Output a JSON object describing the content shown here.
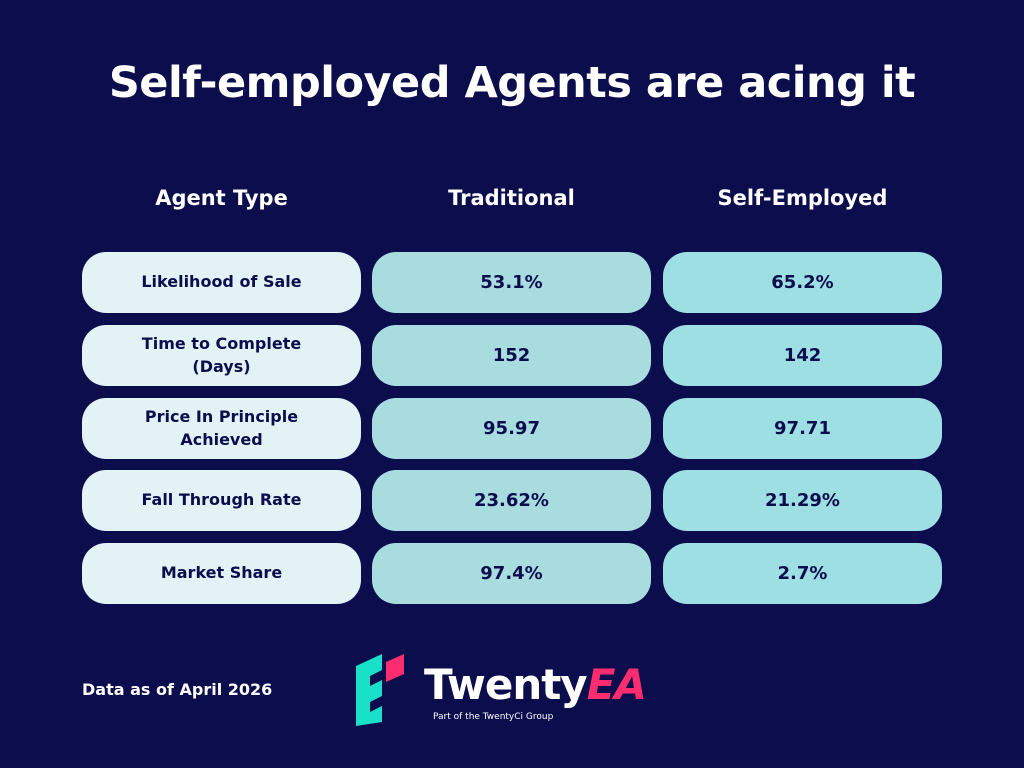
{
  "header": {
    "title": "Self-employed Agents are acing it"
  },
  "table": {
    "columns": [
      "Agent Type",
      "Traditional",
      "Self-Employed"
    ],
    "rows": [
      [
        "Likelihood of Sale",
        "53.1%",
        "65.2%"
      ],
      [
        "Time to Complete (Days)",
        "152",
        "142"
      ],
      [
        "Price In Principle Achieved",
        "95.97",
        "97.71"
      ],
      [
        "Fall Through Rate",
        "23.62%",
        "21.29%"
      ],
      [
        "Market Share",
        "97.4%",
        "2.7%"
      ]
    ]
  },
  "footer": {
    "note": "Data as of April 2026",
    "logo": {
      "brand": "Twenty",
      "brand_accent": "EA",
      "tagline": "Part of the TwentyCi Group"
    }
  }
}
